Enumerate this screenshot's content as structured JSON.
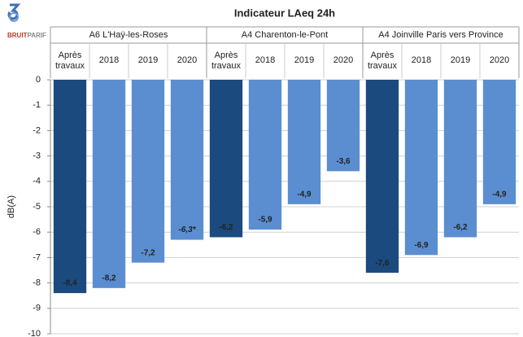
{
  "chart_data": {
    "type": "grouped-bar",
    "title": "Indicateur LAeq 24h",
    "logo_parts": [
      "BRUIT",
      "PARIF"
    ],
    "y_label": "dB(A)",
    "categories": [
      "Après travaux",
      "2018",
      "2019",
      "2020"
    ],
    "ylim": [
      -10,
      0
    ],
    "yticks": [
      0,
      -1,
      -2,
      -3,
      -4,
      -5,
      -6,
      -7,
      -8,
      -9,
      -10
    ],
    "grid": true,
    "series": [
      {
        "name": "A6 L'Haÿ-les-Roses",
        "colors": [
          "#1b4a7f",
          "#5b8ed0",
          "#5b8ed0",
          "#5b8ed0"
        ],
        "values": [
          -8.4,
          -8.2,
          -7.2,
          -6.3
        ],
        "value_labels": [
          "-8,4",
          "-8,2",
          "-7,2",
          "-6,3*"
        ]
      },
      {
        "name": "A4 Charenton-le-Pont",
        "colors": [
          "#1b4a7f",
          "#5b8ed0",
          "#5b8ed0",
          "#5b8ed0"
        ],
        "values": [
          -6.2,
          -5.9,
          -4.9,
          -3.6
        ],
        "value_labels": [
          "-6,2",
          "-5,9",
          "-4,9",
          "-3,6"
        ]
      },
      {
        "name": "A4 Joinville Paris vers Province",
        "colors": [
          "#1b4a7f",
          "#5b8ed0",
          "#5b8ed0",
          "#5b8ed0"
        ],
        "values": [
          -7.6,
          -6.9,
          -6.2,
          -4.9
        ],
        "value_labels": [
          "-7,6",
          "-6,9",
          "-6,2",
          "-4,9"
        ]
      }
    ]
  }
}
